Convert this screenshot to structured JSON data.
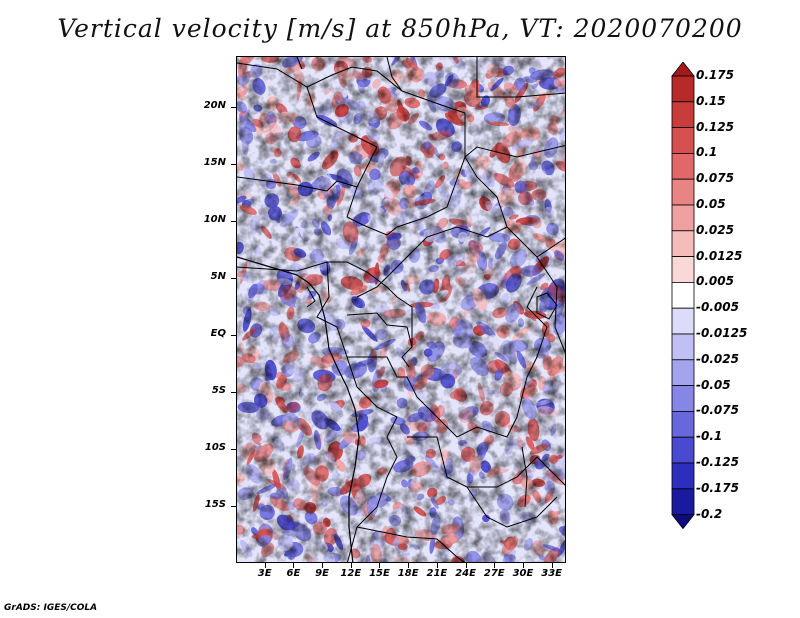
{
  "title": "Vertical velocity [m/s] at 850hPa, VT: 2020070200",
  "footer": "GrADS: IGES/COLA",
  "y_axis": {
    "labels": [
      "20N",
      "15N",
      "10N",
      "5N",
      "EQ",
      "5S",
      "10S",
      "15S"
    ],
    "latitudes": [
      20,
      15,
      10,
      5,
      0,
      -5,
      -10,
      -15
    ],
    "range": [
      -20,
      24.5
    ]
  },
  "x_axis": {
    "labels": [
      "3E",
      "6E",
      "9E",
      "12E",
      "15E",
      "18E",
      "21E",
      "24E",
      "27E",
      "30E",
      "33E"
    ],
    "longitudes": [
      3,
      6,
      9,
      12,
      15,
      18,
      21,
      24,
      27,
      30,
      33
    ],
    "range": [
      0,
      34.5
    ]
  },
  "colorbar": {
    "labels": [
      "0.175",
      "0.15",
      "0.125",
      "0.1",
      "0.075",
      "0.05",
      "0.025",
      "0.0125",
      "0.005",
      "-0.005",
      "-0.0125",
      "-0.025",
      "-0.05",
      "-0.075",
      "-0.1",
      "-0.125",
      "-0.175",
      "-0.2"
    ],
    "colors": [
      "#a31a1a",
      "#b82a2a",
      "#c93c3c",
      "#d65050",
      "#e06868",
      "#e88484",
      "#efa0a0",
      "#f5bcbc",
      "#fad8d8",
      "#ffffff",
      "#dcdcfa",
      "#c0c0f4",
      "#a4a4ee",
      "#8686e6",
      "#6868dc",
      "#4a4ad0",
      "#2e2ebe",
      "#1a1aa0",
      "#0c0c80"
    ]
  }
}
